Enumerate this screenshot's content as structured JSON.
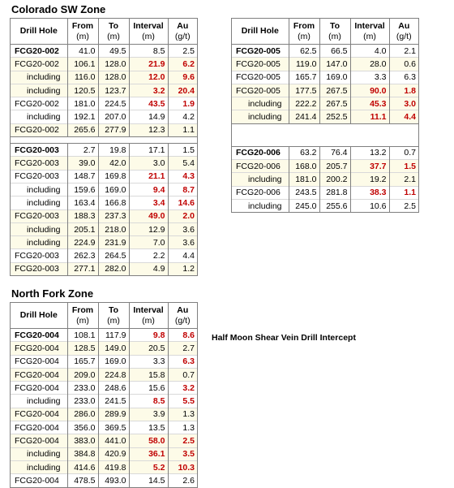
{
  "headers": {
    "drill_hole": "Drill Hole",
    "from": "From",
    "from_unit": "(m)",
    "to": "To",
    "to_unit": "(m)",
    "interval": "Interval",
    "interval_unit": "(m)",
    "au": "Au",
    "au_unit": "(g/t)"
  },
  "colorado": {
    "title": "Colorado SW Zone",
    "rows": [
      {
        "hole": "FCG20-002",
        "from": "41.0",
        "to": "49.5",
        "interval": "8.5",
        "au": "2.5",
        "bold": true,
        "sub": false,
        "hi_int": false,
        "hi_au": false,
        "shade": false,
        "start": true
      },
      {
        "hole": "FCG20-002",
        "from": "106.1",
        "to": "128.0",
        "interval": "21.9",
        "au": "6.2",
        "bold": false,
        "sub": false,
        "hi_int": true,
        "hi_au": true,
        "shade": true,
        "start": true
      },
      {
        "hole": "including",
        "from": "116.0",
        "to": "128.0",
        "interval": "12.0",
        "au": "9.6",
        "bold": false,
        "sub": true,
        "hi_int": true,
        "hi_au": true,
        "shade": true,
        "start": false
      },
      {
        "hole": "including",
        "from": "120.5",
        "to": "123.7",
        "interval": "3.2",
        "au": "20.4",
        "bold": false,
        "sub": true,
        "hi_int": true,
        "hi_au": true,
        "shade": true,
        "start": false
      },
      {
        "hole": "FCG20-002",
        "from": "181.0",
        "to": "224.5",
        "interval": "43.5",
        "au": "1.9",
        "bold": false,
        "sub": false,
        "hi_int": true,
        "hi_au": true,
        "shade": false,
        "start": true
      },
      {
        "hole": "including",
        "from": "192.1",
        "to": "207.0",
        "interval": "14.9",
        "au": "4.2",
        "bold": false,
        "sub": true,
        "hi_int": false,
        "hi_au": false,
        "shade": false,
        "start": false
      },
      {
        "hole": "FCG20-002",
        "from": "265.6",
        "to": "277.9",
        "interval": "12.3",
        "au": "1.1",
        "bold": false,
        "sub": false,
        "hi_int": false,
        "hi_au": false,
        "shade": true,
        "start": true
      },
      {
        "gap": true
      },
      {
        "hole": "FCG20-003",
        "from": "2.7",
        "to": "19.8",
        "interval": "17.1",
        "au": "1.5",
        "bold": true,
        "sub": false,
        "hi_int": false,
        "hi_au": false,
        "shade": false,
        "start": true
      },
      {
        "hole": "FCG20-003",
        "from": "39.0",
        "to": "42.0",
        "interval": "3.0",
        "au": "5.4",
        "bold": false,
        "sub": false,
        "hi_int": false,
        "hi_au": false,
        "shade": true,
        "start": true
      },
      {
        "hole": "FCG20-003",
        "from": "148.7",
        "to": "169.8",
        "interval": "21.1",
        "au": "4.3",
        "bold": false,
        "sub": false,
        "hi_int": true,
        "hi_au": true,
        "shade": false,
        "start": true
      },
      {
        "hole": "including",
        "from": "159.6",
        "to": "169.0",
        "interval": "9.4",
        "au": "8.7",
        "bold": false,
        "sub": true,
        "hi_int": true,
        "hi_au": true,
        "shade": false,
        "start": false
      },
      {
        "hole": "including",
        "from": "163.4",
        "to": "166.8",
        "interval": "3.4",
        "au": "14.6",
        "bold": false,
        "sub": true,
        "hi_int": true,
        "hi_au": true,
        "shade": false,
        "start": false
      },
      {
        "hole": "FCG20-003",
        "from": "188.3",
        "to": "237.3",
        "interval": "49.0",
        "au": "2.0",
        "bold": false,
        "sub": false,
        "hi_int": true,
        "hi_au": true,
        "shade": true,
        "start": true
      },
      {
        "hole": "including",
        "from": "205.1",
        "to": "218.0",
        "interval": "12.9",
        "au": "3.6",
        "bold": false,
        "sub": true,
        "hi_int": false,
        "hi_au": false,
        "shade": true,
        "start": false
      },
      {
        "hole": "including",
        "from": "224.9",
        "to": "231.9",
        "interval": "7.0",
        "au": "3.6",
        "bold": false,
        "sub": true,
        "hi_int": false,
        "hi_au": false,
        "shade": true,
        "start": false
      },
      {
        "hole": "FCG20-003",
        "from": "262.3",
        "to": "264.5",
        "interval": "2.2",
        "au": "4.4",
        "bold": false,
        "sub": false,
        "hi_int": false,
        "hi_au": false,
        "shade": false,
        "start": true
      },
      {
        "hole": "FCG20-003",
        "from": "277.1",
        "to": "282.0",
        "interval": "4.9",
        "au": "1.2",
        "bold": false,
        "sub": false,
        "hi_int": false,
        "hi_au": false,
        "shade": true,
        "start": true
      }
    ]
  },
  "right": {
    "rows": [
      {
        "hole": "FCG20-005",
        "from": "62.5",
        "to": "66.5",
        "interval": "4.0",
        "au": "2.1",
        "bold": true,
        "sub": false,
        "hi_int": false,
        "hi_au": false,
        "shade": false,
        "start": true
      },
      {
        "hole": "FCG20-005",
        "from": "119.0",
        "to": "147.0",
        "interval": "28.0",
        "au": "0.6",
        "bold": false,
        "sub": false,
        "hi_int": false,
        "hi_au": false,
        "shade": true,
        "start": true
      },
      {
        "hole": "FCG20-005",
        "from": "165.7",
        "to": "169.0",
        "interval": "3.3",
        "au": "6.3",
        "bold": false,
        "sub": false,
        "hi_int": false,
        "hi_au": false,
        "shade": false,
        "start": true
      },
      {
        "hole": "FCG20-005",
        "from": "177.5",
        "to": "267.5",
        "interval": "90.0",
        "au": "1.8",
        "bold": false,
        "sub": false,
        "hi_int": true,
        "hi_au": true,
        "shade": true,
        "start": true
      },
      {
        "hole": "including",
        "from": "222.2",
        "to": "267.5",
        "interval": "45.3",
        "au": "3.0",
        "bold": false,
        "sub": true,
        "hi_int": true,
        "hi_au": true,
        "shade": true,
        "start": false
      },
      {
        "hole": "including",
        "from": "241.4",
        "to": "252.5",
        "interval": "11.1",
        "au": "4.4",
        "bold": false,
        "sub": true,
        "hi_int": true,
        "hi_au": true,
        "shade": true,
        "start": false
      }
    ],
    "rows2": [
      {
        "hole": "FCG20-006",
        "from": "63.2",
        "to": "76.4",
        "interval": "13.2",
        "au": "0.7",
        "bold": true,
        "sub": false,
        "hi_int": false,
        "hi_au": false,
        "shade": false,
        "start": true
      },
      {
        "hole": "FCG20-006",
        "from": "168.0",
        "to": "205.7",
        "interval": "37.7",
        "au": "1.5",
        "bold": false,
        "sub": false,
        "hi_int": true,
        "hi_au": true,
        "shade": true,
        "start": true
      },
      {
        "hole": "including",
        "from": "181.0",
        "to": "200.2",
        "interval": "19.2",
        "au": "2.1",
        "bold": false,
        "sub": true,
        "hi_int": false,
        "hi_au": false,
        "shade": true,
        "start": false
      },
      {
        "hole": "FCG20-006",
        "from": "243.5",
        "to": "281.8",
        "interval": "38.3",
        "au": "1.1",
        "bold": false,
        "sub": false,
        "hi_int": true,
        "hi_au": true,
        "shade": false,
        "start": true
      },
      {
        "hole": "including",
        "from": "245.0",
        "to": "255.6",
        "interval": "10.6",
        "au": "2.5",
        "bold": false,
        "sub": true,
        "hi_int": false,
        "hi_au": false,
        "shade": false,
        "start": false
      }
    ]
  },
  "northfork": {
    "title": "North Fork Zone",
    "note": "Half Moon Shear Vein Drill Intercept",
    "rows": [
      {
        "hole": "FCG20-004",
        "from": "108.1",
        "to": "117.9",
        "interval": "9.8",
        "au": "8.6",
        "bold": true,
        "sub": false,
        "hi_int": true,
        "hi_au": true,
        "shade": false,
        "start": true
      },
      {
        "hole": "FCG20-004",
        "from": "128.5",
        "to": "149.0",
        "interval": "20.5",
        "au": "2.7",
        "bold": false,
        "sub": false,
        "hi_int": false,
        "hi_au": false,
        "shade": true,
        "start": true
      },
      {
        "hole": "FCG20-004",
        "from": "165.7",
        "to": "169.0",
        "interval": "3.3",
        "au": "6.3",
        "bold": false,
        "sub": false,
        "hi_int": false,
        "hi_au": true,
        "shade": false,
        "start": true
      },
      {
        "hole": "FCG20-004",
        "from": "209.0",
        "to": "224.8",
        "interval": "15.8",
        "au": "0.7",
        "bold": false,
        "sub": false,
        "hi_int": false,
        "hi_au": false,
        "shade": true,
        "start": true
      },
      {
        "hole": "FCG20-004",
        "from": "233.0",
        "to": "248.6",
        "interval": "15.6",
        "au": "3.2",
        "bold": false,
        "sub": false,
        "hi_int": false,
        "hi_au": true,
        "shade": false,
        "start": true
      },
      {
        "hole": "including",
        "from": "233.0",
        "to": "241.5",
        "interval": "8.5",
        "au": "5.5",
        "bold": false,
        "sub": true,
        "hi_int": true,
        "hi_au": true,
        "shade": false,
        "start": false
      },
      {
        "hole": "FCG20-004",
        "from": "286.0",
        "to": "289.9",
        "interval": "3.9",
        "au": "1.3",
        "bold": false,
        "sub": false,
        "hi_int": false,
        "hi_au": false,
        "shade": true,
        "start": true
      },
      {
        "hole": "FCG20-004",
        "from": "356.0",
        "to": "369.5",
        "interval": "13.5",
        "au": "1.3",
        "bold": false,
        "sub": false,
        "hi_int": false,
        "hi_au": false,
        "shade": false,
        "start": true
      },
      {
        "hole": "FCG20-004",
        "from": "383.0",
        "to": "441.0",
        "interval": "58.0",
        "au": "2.5",
        "bold": false,
        "sub": false,
        "hi_int": true,
        "hi_au": true,
        "shade": true,
        "start": true
      },
      {
        "hole": "including",
        "from": "384.8",
        "to": "420.9",
        "interval": "36.1",
        "au": "3.5",
        "bold": false,
        "sub": true,
        "hi_int": true,
        "hi_au": true,
        "shade": true,
        "start": false
      },
      {
        "hole": "including",
        "from": "414.6",
        "to": "419.8",
        "interval": "5.2",
        "au": "10.3",
        "bold": false,
        "sub": true,
        "hi_int": true,
        "hi_au": true,
        "shade": true,
        "start": false
      },
      {
        "hole": "FCG20-004",
        "from": "478.5",
        "to": "493.0",
        "interval": "14.5",
        "au": "2.6",
        "bold": false,
        "sub": false,
        "hi_int": false,
        "hi_au": false,
        "shade": false,
        "start": true
      }
    ]
  }
}
